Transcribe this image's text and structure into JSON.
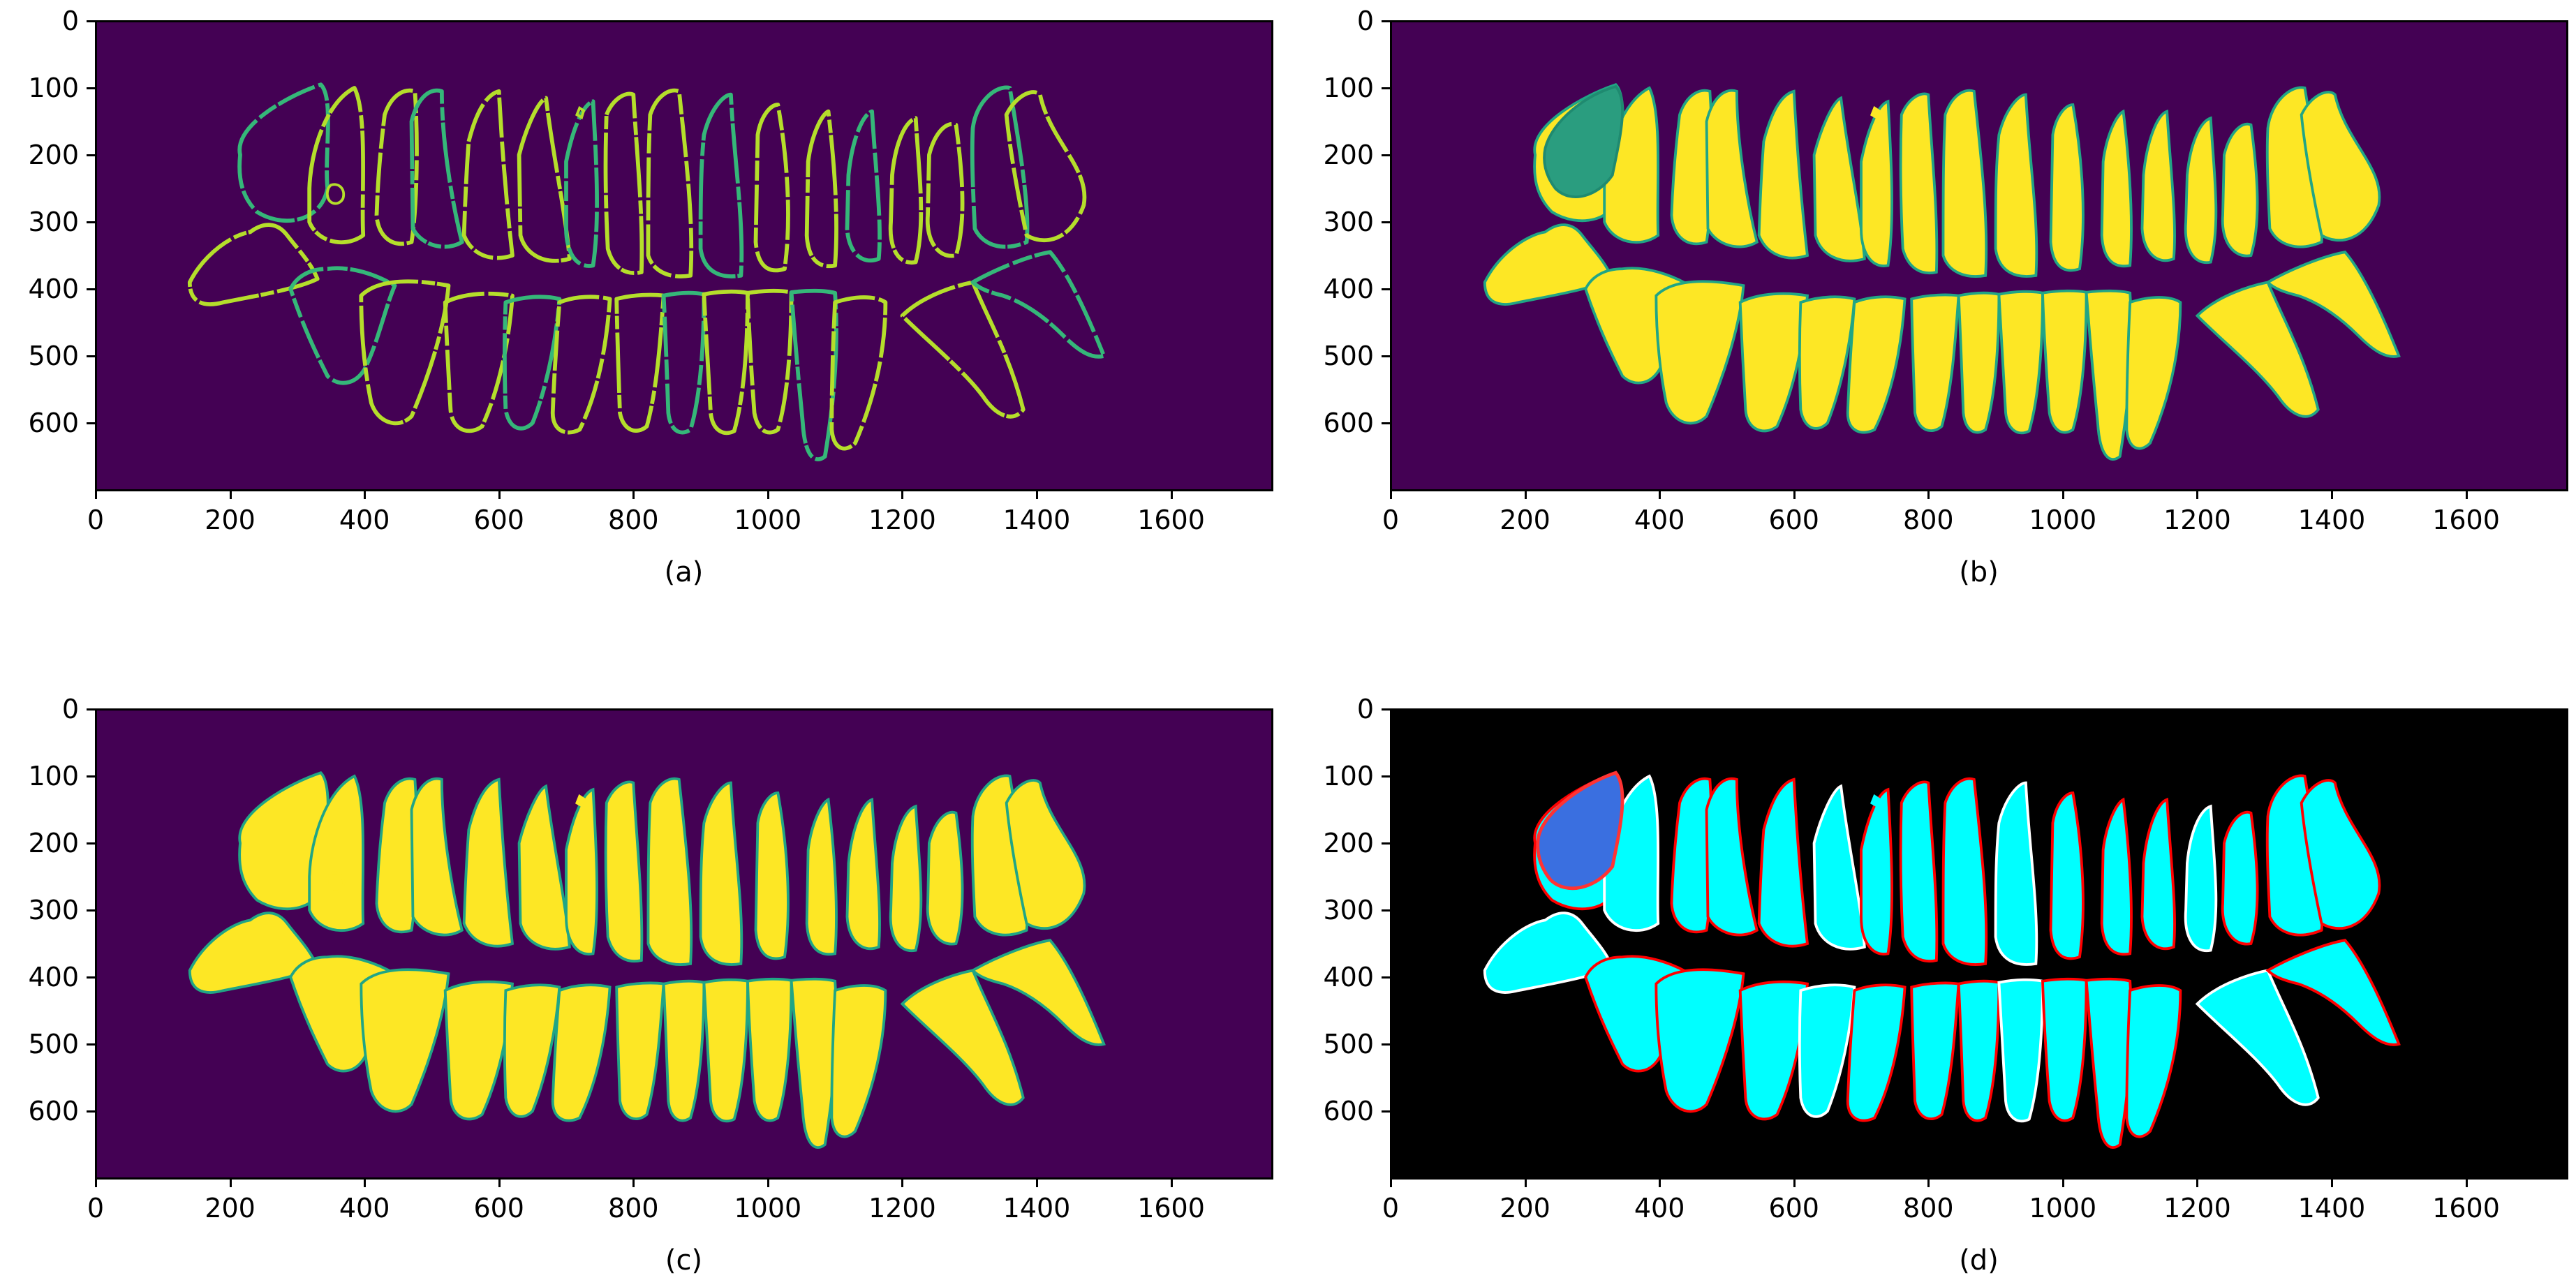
{
  "figure": {
    "panels": [
      {
        "id": "a",
        "caption": "(a)",
        "background": "#440154",
        "style": "contours"
      },
      {
        "id": "b",
        "caption": "(b)",
        "background": "#440154",
        "style": "filled"
      },
      {
        "id": "c",
        "caption": "(c)",
        "background": "#440154",
        "style": "filled"
      },
      {
        "id": "d",
        "caption": "(d)",
        "background": "#000000",
        "style": "overlay"
      }
    ],
    "xticks": [
      "0",
      "200",
      "400",
      "600",
      "800",
      "1000",
      "1200",
      "1400",
      "1600"
    ],
    "yticks": [
      "0",
      "100",
      "200",
      "300",
      "400",
      "500",
      "600"
    ]
  },
  "chart_data": [
    {
      "type": "heatmap",
      "caption": "(a)",
      "xlim": [
        0,
        1750
      ],
      "ylim": [
        700,
        0
      ],
      "xticks": [
        0,
        200,
        400,
        600,
        800,
        1000,
        1200,
        1400,
        1600
      ],
      "yticks": [
        0,
        100,
        200,
        300,
        400,
        500,
        600
      ],
      "colormap": "viridis",
      "content": "tooth boundary contours"
    },
    {
      "type": "heatmap",
      "caption": "(b)",
      "xlim": [
        0,
        1750
      ],
      "ylim": [
        700,
        0
      ],
      "xticks": [
        0,
        200,
        400,
        600,
        800,
        1000,
        1200,
        1400,
        1600
      ],
      "yticks": [
        0,
        100,
        200,
        300,
        400,
        500,
        600
      ],
      "colormap": "viridis",
      "content": "tooth segmentation mask"
    },
    {
      "type": "heatmap",
      "caption": "(c)",
      "xlim": [
        0,
        1750
      ],
      "ylim": [
        700,
        0
      ],
      "xticks": [
        0,
        200,
        400,
        600,
        800,
        1000,
        1200,
        1400,
        1600
      ],
      "yticks": [
        0,
        100,
        200,
        300,
        400,
        500,
        600
      ],
      "colormap": "viridis",
      "content": "tooth segmentation mask"
    },
    {
      "type": "heatmap",
      "caption": "(d)",
      "xlim": [
        0,
        1750
      ],
      "ylim": [
        700,
        0
      ],
      "xticks": [
        0,
        200,
        400,
        600,
        800,
        1000,
        1200,
        1400,
        1600
      ],
      "yticks": [
        0,
        100,
        200,
        300,
        400,
        500,
        600
      ],
      "content": "segmentation overlay comparison"
    }
  ],
  "colors": {
    "contour": "#b5de2b",
    "contour_alt": "#35b779",
    "mask": "#fde725",
    "mask_edge": "#21a585",
    "overlay_fill": "#00ffff",
    "overlay_edge_fp": "#ff0000",
    "overlay_edge_fn": "#ffffff",
    "overlay_blob": "#3a6fe0"
  }
}
